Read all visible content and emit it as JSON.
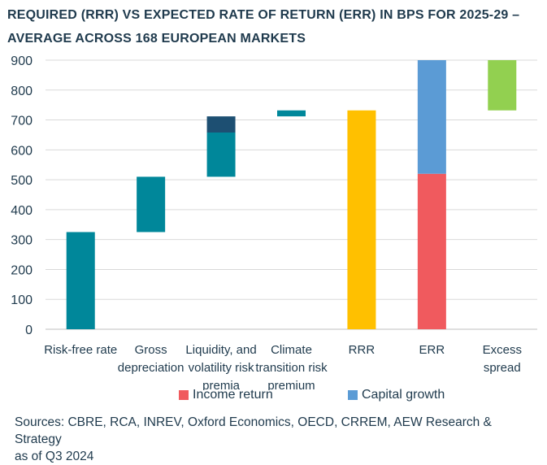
{
  "header": {
    "title_line1": "REQUIRED (RRR) VS EXPECTED RATE OF RETURN (ERR) IN BPS FOR 2025-29 –",
    "title_line2": "AVERAGE ACROSS 168 EUROPEAN MARKETS"
  },
  "chart_data": {
    "type": "bar",
    "subtype": "waterfall",
    "ylim": [
      0,
      900
    ],
    "yticks": [
      0,
      100,
      200,
      300,
      400,
      500,
      600,
      700,
      800,
      900
    ],
    "grid": true,
    "legend_position": "bottom",
    "categories": [
      [
        "Risk-free rate"
      ],
      [
        "Gross",
        "depreciation"
      ],
      [
        "Liquidity, and",
        "volatility risk",
        "premia"
      ],
      [
        "Climate",
        "transition risk",
        "premium"
      ],
      [
        "RRR"
      ],
      [
        "ERR"
      ],
      [
        "Excess",
        "spread"
      ]
    ],
    "bars": [
      {
        "segments": [
          {
            "from": 0,
            "to": 325,
            "color": "#00879a"
          }
        ]
      },
      {
        "segments": [
          {
            "from": 325,
            "to": 510,
            "color": "#00879a"
          }
        ]
      },
      {
        "segments": [
          {
            "from": 510,
            "to": 658,
            "color": "#00879a"
          },
          {
            "from": 658,
            "to": 712,
            "color": "#1d4f72"
          }
        ]
      },
      {
        "segments": [
          {
            "from": 712,
            "to": 732,
            "color": "#00879a"
          }
        ]
      },
      {
        "segments": [
          {
            "from": 0,
            "to": 732,
            "color": "#ffc000"
          }
        ]
      },
      {
        "segments": [
          {
            "from": 0,
            "to": 520,
            "color": "#f05a5e",
            "series": "Income return"
          },
          {
            "from": 520,
            "to": 900,
            "color": "#5b9bd5",
            "series": "Capital growth"
          }
        ]
      },
      {
        "segments": [
          {
            "from": 732,
            "to": 900,
            "color": "#92d050"
          }
        ]
      }
    ],
    "legend": [
      {
        "label": "Income return",
        "color": "#f05a5e"
      },
      {
        "label": "Capital growth",
        "color": "#5b9bd5"
      }
    ]
  },
  "footer": {
    "source_line1": "Sources: CBRE, RCA, INREV, Oxford Economics, OECD, CRREM, AEW Research & Strategy",
    "source_line2": "as of Q3 2024"
  }
}
